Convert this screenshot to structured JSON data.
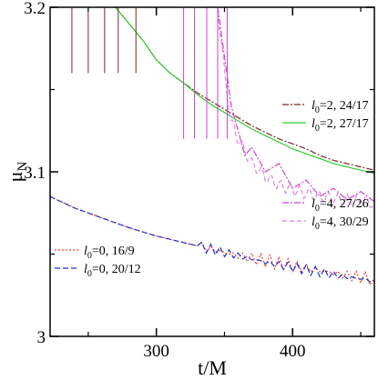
{
  "chart_data": {
    "type": "line",
    "xlabel": "t/M",
    "ylabel": "μN",
    "xlim": [
      222,
      460
    ],
    "ylim": [
      3.0,
      3.2
    ],
    "x_ticks": [
      300,
      400
    ],
    "x_tick_labels": [
      "300",
      "400"
    ],
    "y_ticks": [
      3.0,
      3.1,
      3.2
    ],
    "y_tick_labels": [
      "3",
      "3.1",
      "3.2"
    ],
    "grid": false,
    "legends": [
      {
        "placement": "top-right",
        "entries": [
          0,
          1
        ]
      },
      {
        "placement": "right",
        "entries": [
          2,
          3
        ]
      },
      {
        "placement": "bottom-left",
        "entries": [
          4,
          5
        ]
      }
    ],
    "series": [
      {
        "name": "l0=2, 24/17",
        "label_l": "l",
        "label_sub": "0",
        "label_rest": "=2, 24/17",
        "color": "#7a2a2a",
        "dash": "7,2,2,2",
        "x": [
          232,
          240,
          250,
          260,
          270,
          280,
          290,
          300,
          310,
          320,
          330,
          340,
          350,
          360,
          370,
          380,
          390,
          400,
          410,
          420,
          430,
          440,
          450,
          460
        ],
        "y": [
          3.28,
          3.245,
          3.225,
          3.215,
          3.2,
          3.19,
          3.18,
          3.168,
          3.16,
          3.154,
          3.148,
          3.143,
          3.138,
          3.133,
          3.128,
          3.124,
          3.12,
          3.117,
          3.114,
          3.11,
          3.107,
          3.105,
          3.103,
          3.101
        ]
      },
      {
        "name": "l0=2, 27/17",
        "label_l": "l",
        "label_sub": "0",
        "label_rest": "=2, 27/17",
        "color": "#33cc33",
        "dash": "",
        "x": [
          232,
          240,
          250,
          260,
          270,
          280,
          290,
          300,
          310,
          320,
          330,
          340,
          350,
          360,
          370,
          380,
          390,
          400,
          410,
          420,
          430,
          440,
          450,
          460
        ],
        "y": [
          3.28,
          3.245,
          3.225,
          3.215,
          3.2,
          3.19,
          3.18,
          3.168,
          3.16,
          3.154,
          3.147,
          3.141,
          3.136,
          3.131,
          3.126,
          3.122,
          3.118,
          3.114,
          3.111,
          3.108,
          3.105,
          3.103,
          3.101,
          3.099
        ]
      },
      {
        "name": "l0=4, 27/26",
        "label_l": "l",
        "label_sub": "0",
        "label_rest": "=4, 27/26",
        "color": "#cc44cc",
        "dash": "7,2,2,2",
        "x": [
          345,
          350,
          355,
          360,
          365,
          370,
          380,
          390,
          400,
          410,
          420,
          430,
          440,
          450,
          460
        ],
        "y": [
          3.2,
          3.17,
          3.14,
          3.125,
          3.11,
          3.115,
          3.1,
          3.105,
          3.09,
          3.095,
          3.085,
          3.09,
          3.083,
          3.088,
          3.082
        ]
      },
      {
        "name": "l0=4, 30/29",
        "label_l": "l",
        "label_sub": "0",
        "label_rest": "=4, 30/29",
        "color": "#dd88dd",
        "dash": "5,3",
        "x": [
          345,
          350,
          355,
          360,
          370,
          380,
          390,
          400,
          410,
          420,
          430,
          440,
          450,
          460
        ],
        "y": [
          3.2,
          3.16,
          3.13,
          3.12,
          3.105,
          3.097,
          3.092,
          3.089,
          3.087,
          3.085,
          3.084,
          3.083,
          3.082,
          3.081
        ]
      },
      {
        "name": "l0=0, 16/9",
        "label_l": "l",
        "label_sub": "0",
        "label_rest": "=0, 16/9",
        "color": "#ee4433",
        "dash": "2,2",
        "x": [
          222,
          240,
          260,
          280,
          300,
          320,
          340,
          360,
          380,
          400,
          420,
          440,
          460
        ],
        "y": [
          3.085,
          3.078,
          3.072,
          3.066,
          3.061,
          3.057,
          3.053,
          3.049,
          3.046,
          3.043,
          3.04,
          3.037,
          3.035
        ]
      },
      {
        "name": "l0=0, 20/12",
        "label_l": "l",
        "label_sub": "0",
        "label_rest": "=0, 20/12",
        "color": "#2233cc",
        "dash": "6,3",
        "x": [
          222,
          240,
          260,
          280,
          300,
          320,
          340,
          360,
          380,
          400,
          420,
          440,
          460
        ],
        "y": [
          3.085,
          3.078,
          3.072,
          3.066,
          3.061,
          3.057,
          3.053,
          3.049,
          3.045,
          3.042,
          3.039,
          3.036,
          3.034
        ]
      }
    ]
  }
}
